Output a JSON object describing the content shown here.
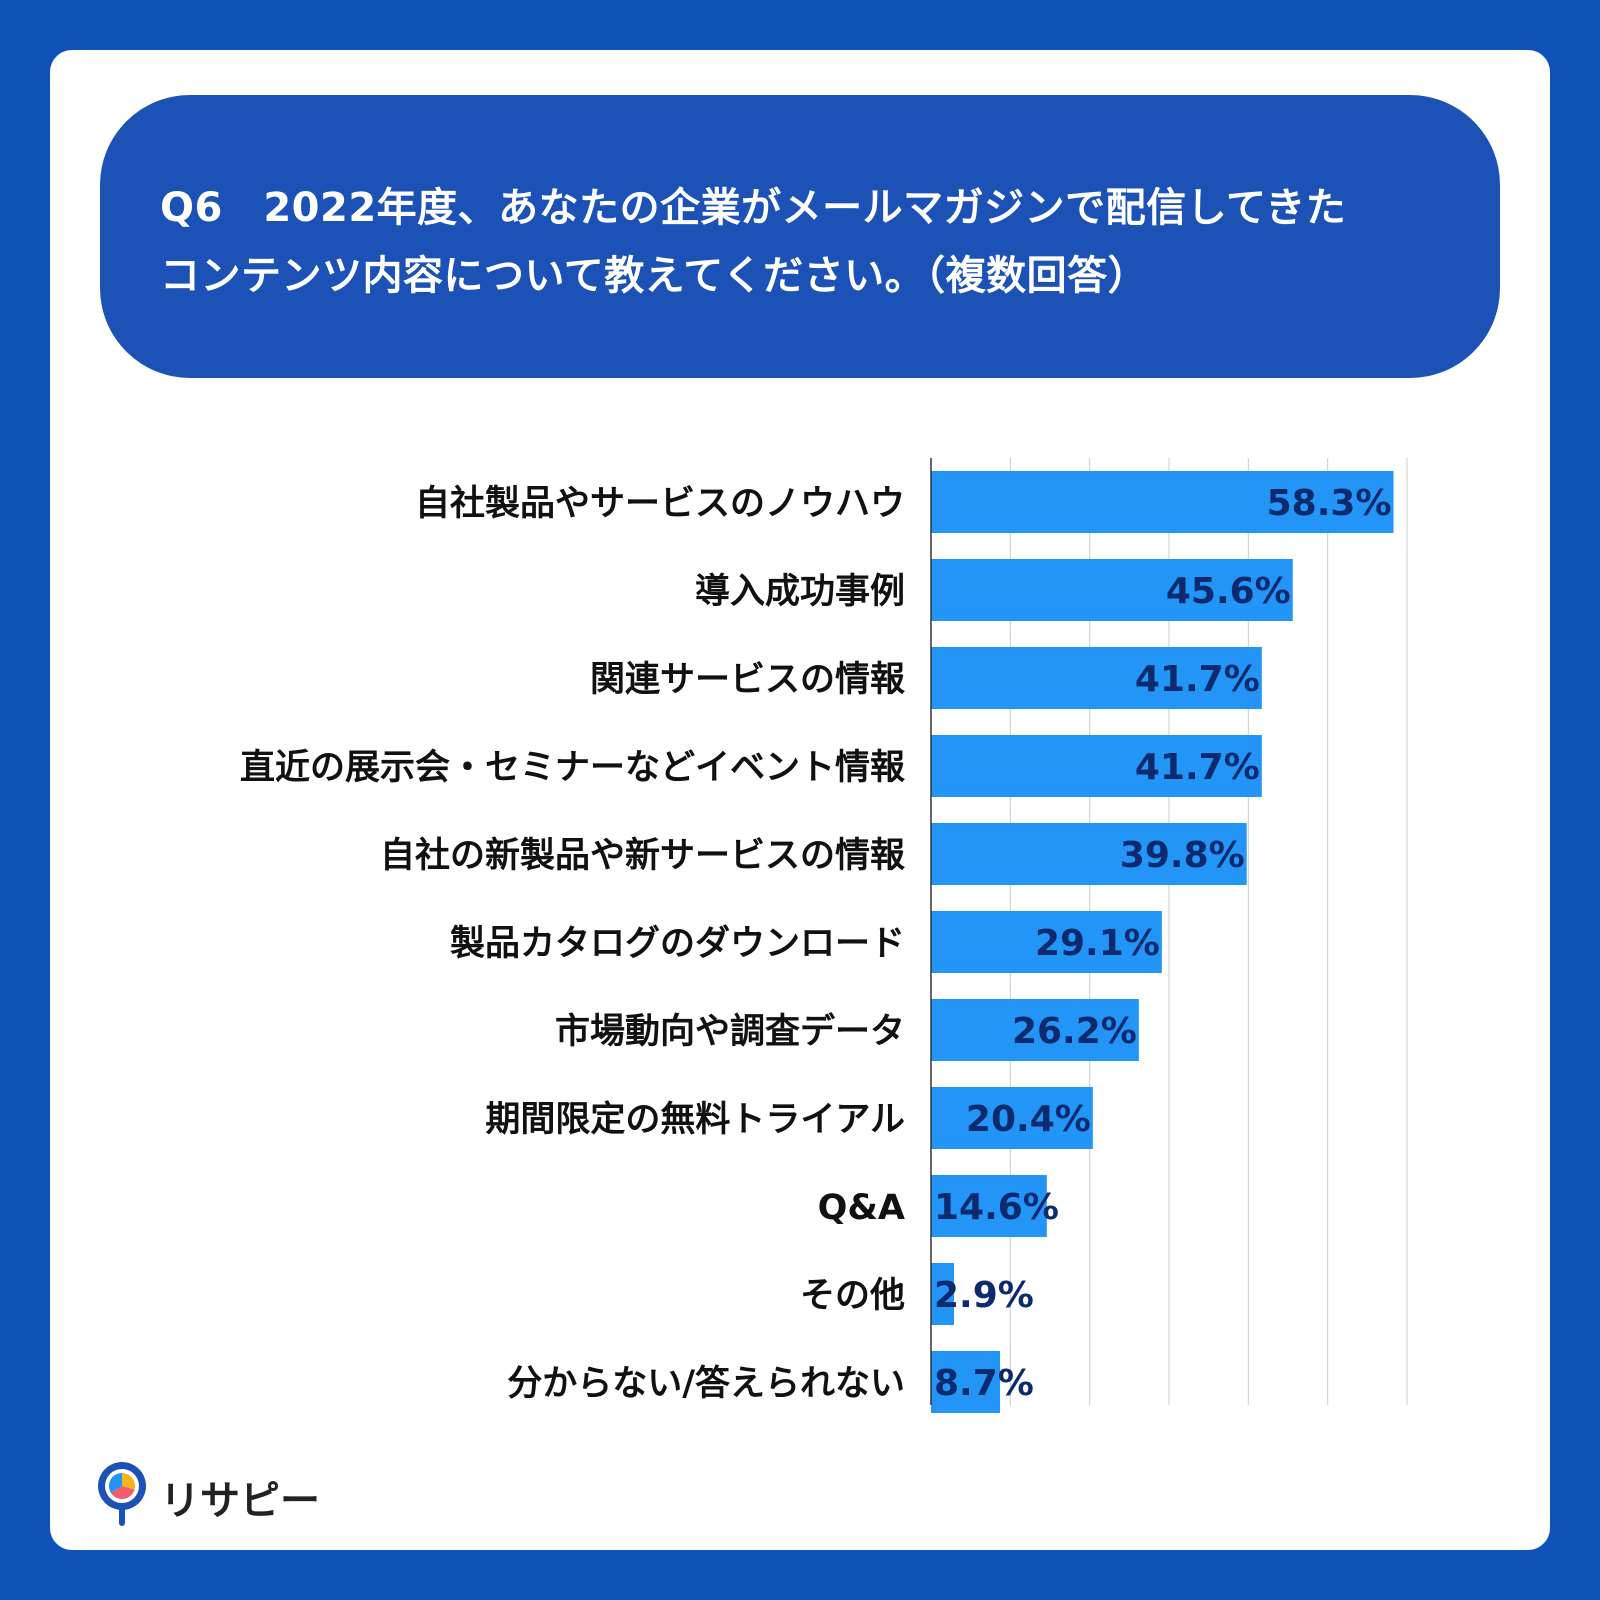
{
  "question": {
    "line1": "Q6　2022年度、あなたの企業がメールマガジンで配信してきた",
    "line2": "コンテンツ内容について教えてください。（複数回答）"
  },
  "chart_data": {
    "type": "bar",
    "orientation": "horizontal",
    "categories": [
      "自社製品やサービスのノウハウ",
      "導入成功事例",
      "関連サービスの情報",
      "直近の展示会・セミナーなどイベント情報",
      "自社の新製品や新サービスの情報",
      "製品カタログのダウンロード",
      "市場動向や調査データ",
      "期間限定の無料トライアル",
      "Q&A",
      "その他",
      "分からない/答えられない"
    ],
    "values": [
      58.3,
      45.6,
      41.7,
      41.7,
      39.8,
      29.1,
      26.2,
      20.4,
      14.6,
      2.9,
      8.7
    ],
    "data_labels": [
      "58.3%",
      "45.6%",
      "41.7%",
      "41.7%",
      "39.8%",
      "29.1%",
      "26.2%",
      "20.4%",
      "14.6%",
      "2.9%",
      "8.7%"
    ],
    "xlim": [
      0,
      60
    ],
    "grid": true,
    "colors": {
      "bar": "#2395f7",
      "label": "#0d2a6e",
      "category": "#111111",
      "grid": "#cccccc"
    }
  },
  "logo": {
    "text": "リサピー"
  },
  "colors": {
    "background": "#0f53b8",
    "banner": "#1c52b5",
    "card": "#ffffff"
  }
}
